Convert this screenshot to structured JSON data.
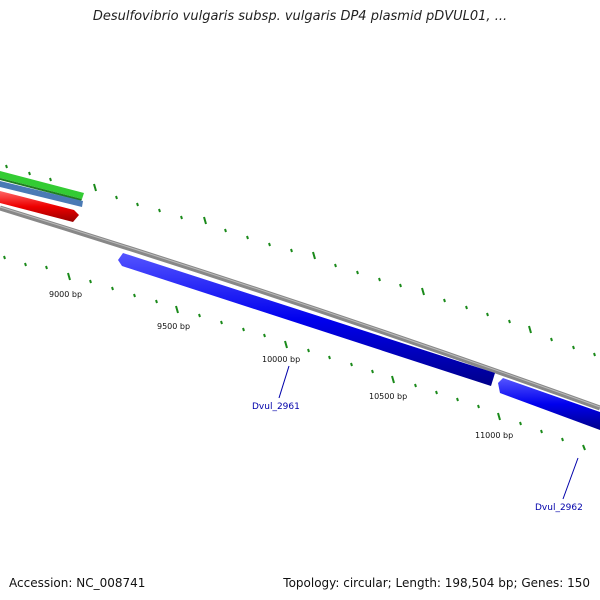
{
  "title": "Desulfovibrio vulgaris subsp. vulgaris DP4 plasmid pDVUL01, ...",
  "footer": {
    "accession": "Accession: NC_008741",
    "stats": "Topology: circular; Length: 198,504 bp; Genes: 150"
  },
  "ticks": [
    "9000 bp",
    "9500 bp",
    "10000 bp",
    "10500 bp",
    "11000 bp"
  ],
  "genes": [
    {
      "id": "Dvul_2961",
      "color": "#0000ee"
    },
    {
      "id": "Dvul_2962",
      "color": "#0000ee"
    }
  ],
  "colors": {
    "backbone": "#888888",
    "feature_red": "#ee0000",
    "feature_green": "#33cc33",
    "feature_steel": "#4a7ab5",
    "tick": "#1a8a1a",
    "gene": "#0000ee"
  }
}
